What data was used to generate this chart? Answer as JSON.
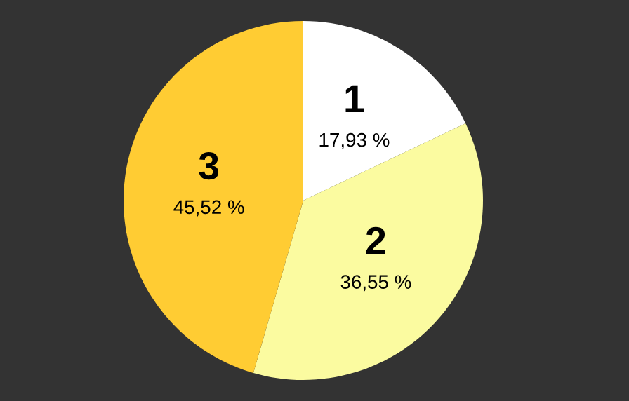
{
  "chart_data": {
    "type": "pie",
    "categories": [
      "1",
      "2",
      "3"
    ],
    "values": [
      17.93,
      36.55,
      45.52
    ],
    "value_labels": [
      "17,93 %",
      "36,55 %",
      "45,52 %"
    ],
    "colors": [
      "#ffffff",
      "#fbfba0",
      "#ffcc33"
    ]
  }
}
